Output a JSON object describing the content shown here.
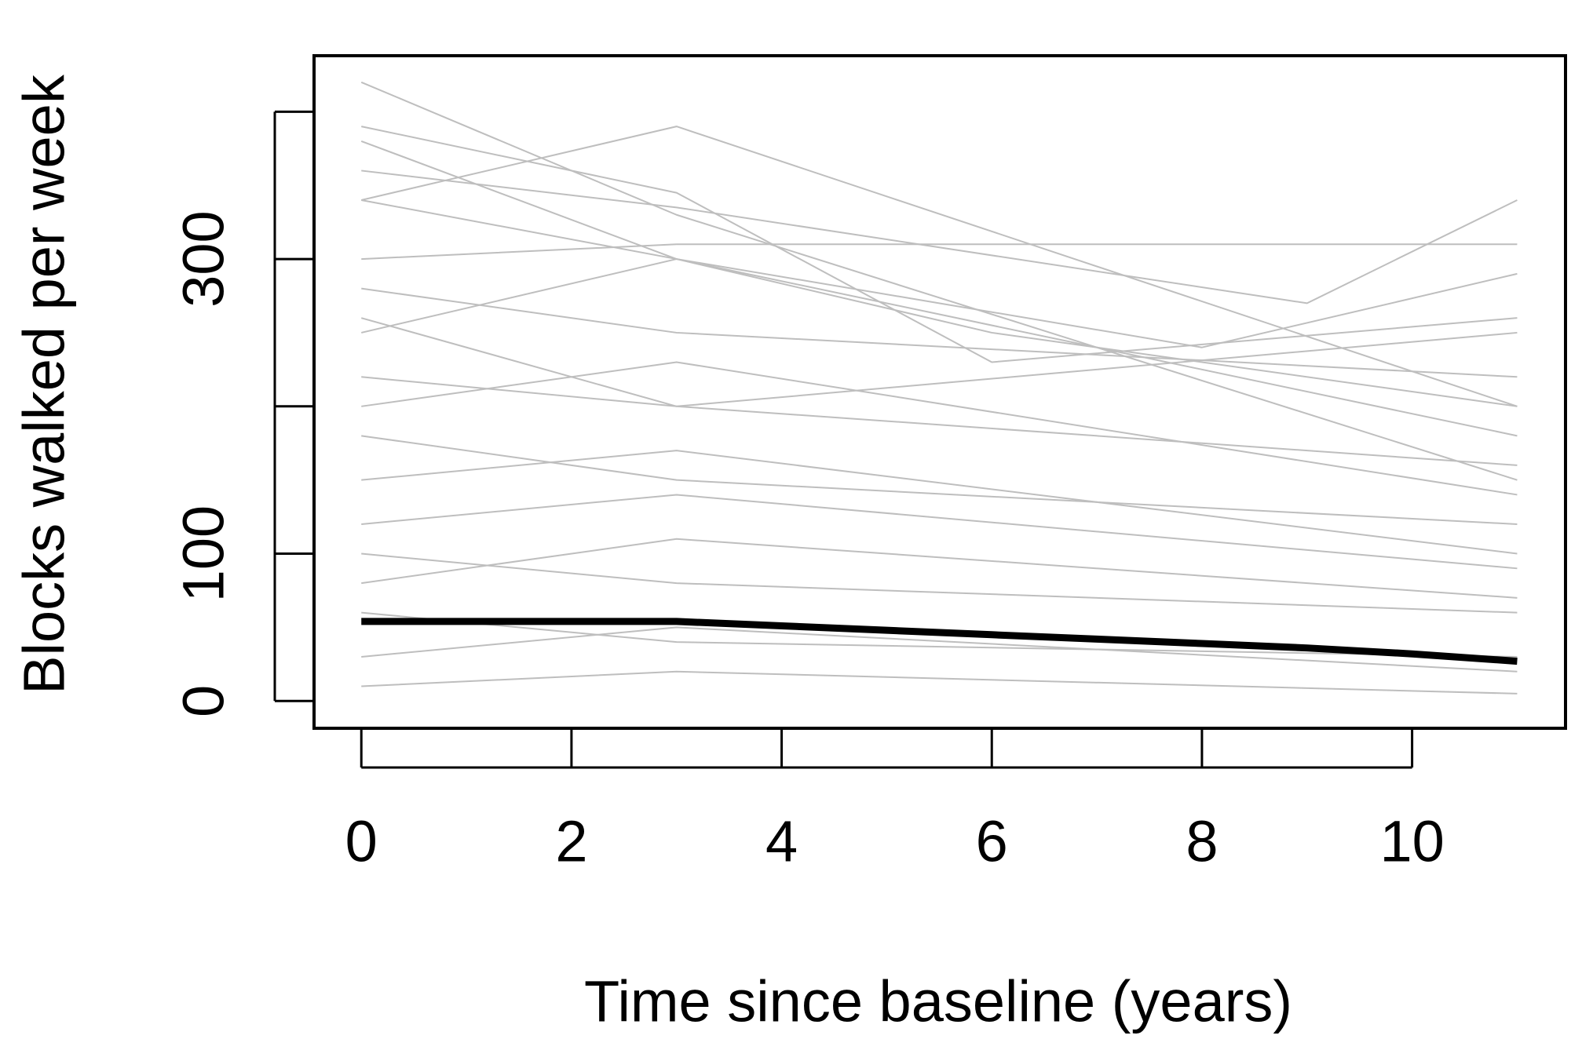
{
  "chart_data": {
    "type": "line",
    "xlabel": "Time since baseline (years)",
    "ylabel": "Blocks walked per week",
    "xlim": [
      -0.45,
      11.46
    ],
    "ylim": [
      -18.5,
      438
    ],
    "xticks": [
      0,
      2,
      4,
      6,
      8,
      10
    ],
    "yticks": [
      0,
      100,
      300
    ],
    "yticks_unlabeled": [
      200,
      400
    ],
    "series": [
      {
        "color": "#bebebe",
        "width": 2,
        "x": [
          0,
          3,
          11
        ],
        "values": [
          420,
          330,
          150
        ]
      },
      {
        "color": "#bebebe",
        "width": 2,
        "x": [
          0,
          3,
          6,
          11
        ],
        "values": [
          390,
          345,
          230,
          260
        ]
      },
      {
        "color": "#bebebe",
        "width": 2,
        "x": [
          0,
          3,
          11
        ],
        "values": [
          340,
          390,
          200
        ]
      },
      {
        "color": "#bebebe",
        "width": 2,
        "x": [
          0,
          3,
          9,
          11
        ],
        "values": [
          360,
          335,
          270,
          340
        ]
      },
      {
        "color": "#bebebe",
        "width": 2,
        "x": [
          0,
          3,
          11
        ],
        "values": [
          300,
          310,
          310
        ]
      },
      {
        "color": "#bebebe",
        "width": 2,
        "x": [
          0,
          3,
          8,
          11
        ],
        "values": [
          380,
          300,
          240,
          290
        ]
      },
      {
        "color": "#bebebe",
        "width": 2,
        "x": [
          0,
          3,
          11
        ],
        "values": [
          280,
          250,
          220
        ]
      },
      {
        "color": "#bebebe",
        "width": 2,
        "x": [
          0,
          3,
          11
        ],
        "values": [
          250,
          300,
          180
        ]
      },
      {
        "color": "#bebebe",
        "width": 2,
        "x": [
          0,
          3,
          11
        ],
        "values": [
          220,
          200,
          160
        ]
      },
      {
        "color": "#bebebe",
        "width": 2,
        "x": [
          0,
          3,
          11
        ],
        "values": [
          200,
          230,
          140
        ]
      },
      {
        "color": "#bebebe",
        "width": 2,
        "x": [
          0,
          3,
          11
        ],
        "values": [
          180,
          150,
          120
        ]
      },
      {
        "color": "#bebebe",
        "width": 2,
        "x": [
          0,
          3,
          11
        ],
        "values": [
          150,
          170,
          100
        ]
      },
      {
        "color": "#bebebe",
        "width": 2,
        "x": [
          0,
          3,
          11
        ],
        "values": [
          120,
          140,
          90
        ]
      },
      {
        "color": "#bebebe",
        "width": 2,
        "x": [
          0,
          3,
          11
        ],
        "values": [
          100,
          80,
          60
        ]
      },
      {
        "color": "#bebebe",
        "width": 2,
        "x": [
          0,
          3,
          11
        ],
        "values": [
          80,
          110,
          70
        ]
      },
      {
        "color": "#bebebe",
        "width": 2,
        "x": [
          0,
          3,
          11
        ],
        "values": [
          60,
          40,
          30
        ]
      },
      {
        "color": "#bebebe",
        "width": 2,
        "x": [
          0,
          3,
          11
        ],
        "values": [
          30,
          50,
          20
        ]
      },
      {
        "color": "#bebebe",
        "width": 2,
        "x": [
          0,
          3,
          11
        ],
        "values": [
          10,
          20,
          5
        ]
      },
      {
        "color": "#bebebe",
        "width": 2,
        "x": [
          0,
          3,
          6,
          11
        ],
        "values": [
          340,
          300,
          250,
          200
        ]
      },
      {
        "color": "#bebebe",
        "width": 2,
        "x": [
          0,
          3,
          11
        ],
        "values": [
          260,
          200,
          250
        ]
      },
      {
        "color": "#000000",
        "width": 9,
        "x": [
          0,
          1,
          2,
          3,
          4,
          5,
          6,
          7,
          8,
          9,
          10,
          11
        ],
        "values": [
          54,
          54,
          54,
          54,
          51,
          48,
          45,
          42,
          39,
          36,
          32,
          27
        ]
      }
    ]
  }
}
